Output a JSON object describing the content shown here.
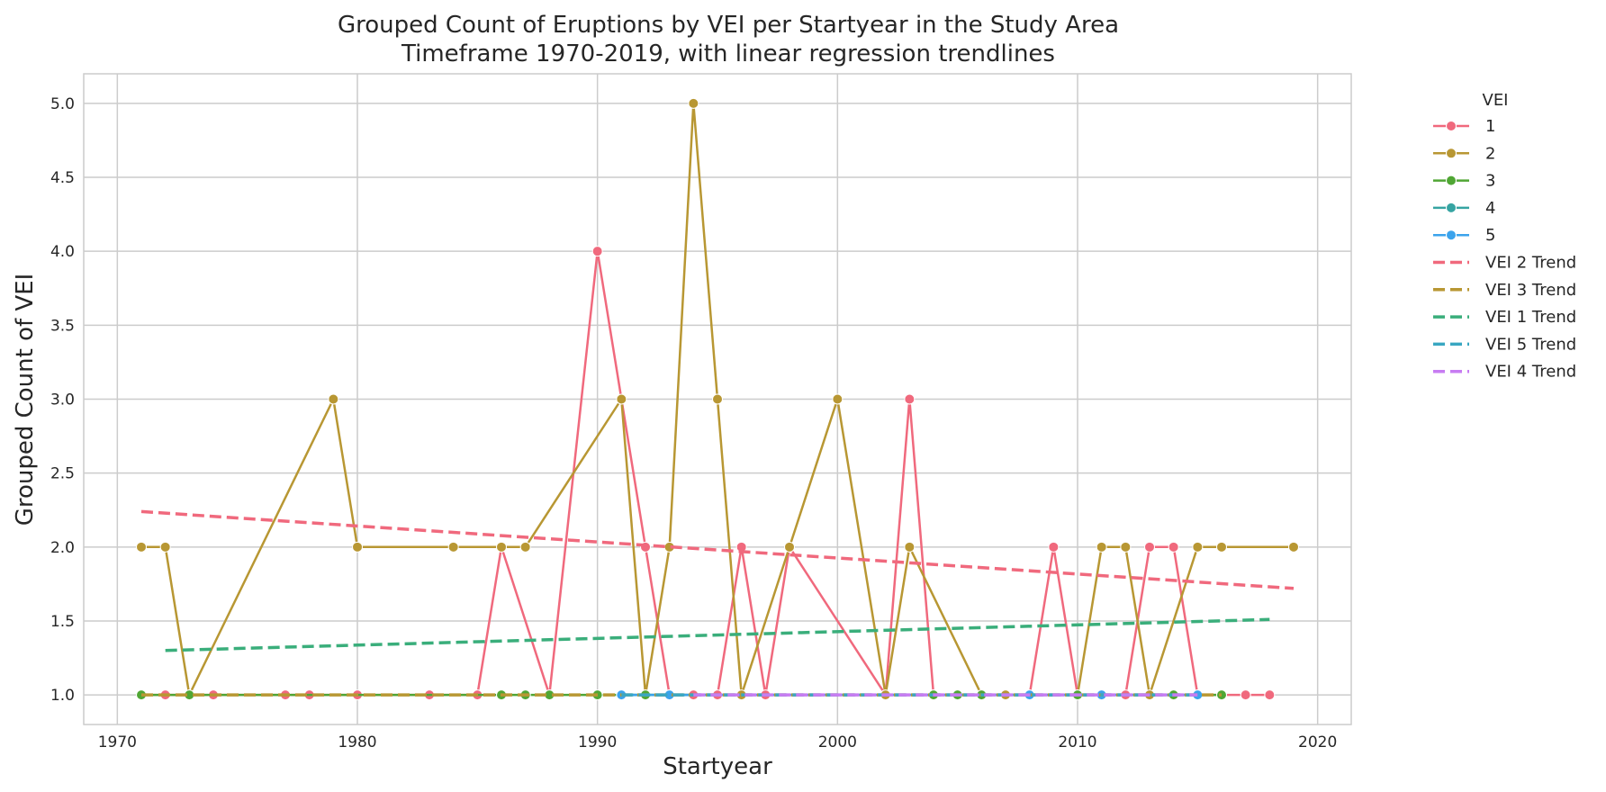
{
  "chart_data": {
    "type": "line",
    "title": "Grouped Count of Eruptions by VEI per Startyear in the Study Area",
    "subtitle": "Timeframe 1970-2019, with linear regression trendlines",
    "xlabel": "Startyear",
    "ylabel": "Grouped Count of VEI",
    "xlim": [
      1968.6,
      2021.4
    ],
    "ylim": [
      0.8,
      5.2
    ],
    "xticks": [
      1970,
      1980,
      1990,
      2000,
      2010,
      2020
    ],
    "yticks": [
      1.0,
      1.5,
      2.0,
      2.5,
      3.0,
      3.5,
      4.0,
      4.5,
      5.0
    ],
    "ytick_labels": [
      "1.0",
      "1.5",
      "2.0",
      "2.5",
      "3.0",
      "3.5",
      "4.0",
      "4.5",
      "5.0"
    ],
    "grid": true,
    "legend_title": "VEI",
    "legend_position": "outside-right",
    "series": [
      {
        "name": "1",
        "color": "#f0697d",
        "style": "solid-marker",
        "points": [
          [
            1971,
            1
          ],
          [
            1972,
            1
          ],
          [
            1974,
            1
          ],
          [
            1977,
            1
          ],
          [
            1978,
            1
          ],
          [
            1980,
            1
          ],
          [
            1983,
            1
          ],
          [
            1985,
            1
          ],
          [
            1986,
            2
          ],
          [
            1988,
            1
          ],
          [
            1990,
            4
          ],
          [
            1992,
            2
          ],
          [
            1993,
            1
          ],
          [
            1994,
            1
          ],
          [
            1995,
            1
          ],
          [
            1996,
            2
          ],
          [
            1997,
            1
          ],
          [
            1998,
            2
          ],
          [
            2002,
            1
          ],
          [
            2003,
            3
          ],
          [
            2004,
            1
          ],
          [
            2005,
            1
          ],
          [
            2006,
            1
          ],
          [
            2008,
            1
          ],
          [
            2009,
            2
          ],
          [
            2010,
            1
          ],
          [
            2011,
            1
          ],
          [
            2012,
            1
          ],
          [
            2013,
            2
          ],
          [
            2014,
            2
          ],
          [
            2015,
            1
          ],
          [
            2016,
            1
          ],
          [
            2017,
            1
          ],
          [
            2018,
            1
          ]
        ]
      },
      {
        "name": "2",
        "color": "#b89733",
        "style": "solid-marker",
        "points": [
          [
            1971,
            2
          ],
          [
            1972,
            2
          ],
          [
            1973,
            1
          ],
          [
            1979,
            3
          ],
          [
            1980,
            2
          ],
          [
            1984,
            2
          ],
          [
            1986,
            2
          ],
          [
            1987,
            2
          ],
          [
            1991,
            3
          ],
          [
            1992,
            1
          ],
          [
            1993,
            2
          ],
          [
            1994,
            5
          ],
          [
            1995,
            3
          ],
          [
            1996,
            1
          ],
          [
            1998,
            2
          ],
          [
            2000,
            3
          ],
          [
            2002,
            1
          ],
          [
            2003,
            2
          ],
          [
            2006,
            1
          ],
          [
            2007,
            1
          ],
          [
            2010,
            1
          ],
          [
            2011,
            2
          ],
          [
            2012,
            2
          ],
          [
            2013,
            1
          ],
          [
            2015,
            2
          ],
          [
            2016,
            2
          ],
          [
            2019,
            2
          ]
        ]
      },
      {
        "name": "3",
        "color": "#50a634",
        "style": "solid-marker",
        "points": [
          [
            1971,
            1
          ],
          [
            1973,
            1
          ],
          [
            1986,
            1
          ],
          [
            1987,
            1
          ],
          [
            1988,
            1
          ],
          [
            1990,
            1
          ],
          [
            1992,
            1
          ],
          [
            2004,
            1
          ],
          [
            2005,
            1
          ],
          [
            2006,
            1
          ],
          [
            2010,
            1
          ],
          [
            2014,
            1
          ],
          [
            2016,
            1
          ]
        ]
      },
      {
        "name": "4",
        "color": "#36a4a2",
        "style": "solid-marker",
        "points": [
          [
            1991,
            1
          ],
          [
            1993,
            1
          ],
          [
            2011,
            1
          ],
          [
            2015,
            1
          ]
        ]
      },
      {
        "name": "5",
        "color": "#3ba3ec",
        "style": "solid-marker",
        "points": [
          [
            1991,
            1
          ],
          [
            1993,
            1
          ],
          [
            2008,
            1
          ],
          [
            2011,
            1
          ],
          [
            2015,
            1
          ]
        ]
      },
      {
        "name": "VEI 2 Trend",
        "color": "#f0697d",
        "style": "dashed",
        "points": [
          [
            1971,
            2.24
          ],
          [
            2019,
            1.72
          ]
        ]
      },
      {
        "name": "VEI 3 Trend",
        "color": "#b89733",
        "style": "dashed",
        "points": [
          [
            1971,
            1
          ],
          [
            2016,
            1
          ]
        ]
      },
      {
        "name": "VEI 1 Trend",
        "color": "#3aae7b",
        "style": "dashed",
        "points": [
          [
            1972,
            1.3
          ],
          [
            2018,
            1.51
          ]
        ]
      },
      {
        "name": "VEI 5 Trend",
        "color": "#3aa7c2",
        "style": "dashed",
        "points": [
          [
            1991,
            1
          ],
          [
            2015,
            1
          ]
        ]
      },
      {
        "name": "VEI 4 Trend",
        "color": "#c77cf2",
        "style": "dashed",
        "points": [
          [
            1994,
            1
          ],
          [
            2015,
            1
          ]
        ]
      }
    ]
  }
}
